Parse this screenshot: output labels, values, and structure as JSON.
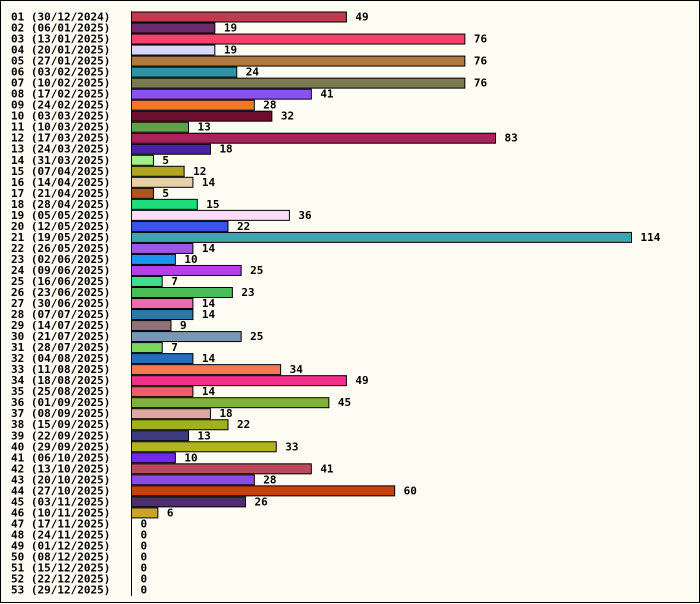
{
  "chart_data": {
    "type": "bar",
    "orientation": "horizontal",
    "title": "",
    "xlabel": "",
    "ylabel": "",
    "grid": false,
    "legend": "none",
    "categories": [
      "01 (30/12/2024)",
      "02 (06/01/2025)",
      "03 (13/01/2025)",
      "04 (20/01/2025)",
      "05 (27/01/2025)",
      "06 (03/02/2025)",
      "07 (10/02/2025)",
      "08 (17/02/2025)",
      "09 (24/02/2025)",
      "10 (03/03/2025)",
      "11 (10/03/2025)",
      "12 (17/03/2025)",
      "13 (24/03/2025)",
      "14 (31/03/2025)",
      "15 (07/04/2025)",
      "16 (14/04/2025)",
      "17 (21/04/2025)",
      "18 (28/04/2025)",
      "19 (05/05/2025)",
      "20 (12/05/2025)",
      "21 (19/05/2025)",
      "22 (26/05/2025)",
      "23 (02/06/2025)",
      "24 (09/06/2025)",
      "25 (16/06/2025)",
      "26 (23/06/2025)",
      "27 (30/06/2025)",
      "28 (07/07/2025)",
      "29 (14/07/2025)",
      "30 (21/07/2025)",
      "31 (28/07/2025)",
      "32 (04/08/2025)",
      "33 (11/08/2025)",
      "34 (18/08/2025)",
      "35 (25/08/2025)",
      "36 (01/09/2025)",
      "37 (08/09/2025)",
      "38 (15/09/2025)",
      "39 (22/09/2025)",
      "40 (29/09/2025)",
      "41 (06/10/2025)",
      "42 (13/10/2025)",
      "43 (20/10/2025)",
      "44 (27/10/2025)",
      "45 (03/11/2025)",
      "46 (10/11/2025)",
      "47 (17/11/2025)",
      "48 (24/11/2025)",
      "49 (01/12/2025)",
      "50 (08/12/2025)",
      "51 (15/12/2025)",
      "52 (22/12/2025)",
      "53 (29/12/2025)"
    ],
    "values": [
      49,
      19,
      76,
      19,
      76,
      24,
      76,
      41,
      28,
      32,
      13,
      83,
      18,
      5,
      12,
      14,
      5,
      15,
      36,
      22,
      114,
      14,
      10,
      25,
      7,
      23,
      14,
      14,
      9,
      25,
      7,
      14,
      34,
      49,
      14,
      45,
      18,
      22,
      13,
      33,
      10,
      41,
      28,
      60,
      26,
      6,
      0,
      0,
      0,
      0,
      0,
      0,
      0
    ],
    "colors": [
      "#c0394f",
      "#6b2a6b",
      "#f2436a",
      "#d8d8fb",
      "#b07a3e",
      "#2e93a8",
      "#7b7950",
      "#8c52f0",
      "#f0782a",
      "#6a0f2c",
      "#5ea24a",
      "#a5245c",
      "#4a1fae",
      "#9ff08a",
      "#b0a51c",
      "#e6d0a8",
      "#b0561a",
      "#1ede7a",
      "#fcdcf6",
      "#3a54e8",
      "#3aa6b0",
      "#9a5ae0",
      "#1a94f0",
      "#b440e8",
      "#3ede92",
      "#4abc5a",
      "#ec6ab0",
      "#2a79a6",
      "#8e7278",
      "#7a96b4",
      "#7ad85e",
      "#2a6cba",
      "#f47a4e",
      "#f0308a",
      "#f25c6a",
      "#80b13a",
      "#dca8a0",
      "#a0b01e",
      "#3e3c80",
      "#b2b422",
      "#6e2aee",
      "#b84a5e",
      "#8c4ae8",
      "#c8400a",
      "#4e2e6c",
      "#c8a42a",
      "#000000",
      "#000000",
      "#000000",
      "#000000",
      "#000000",
      "#000000",
      "#000000"
    ],
    "xlim": [
      0,
      114
    ]
  }
}
